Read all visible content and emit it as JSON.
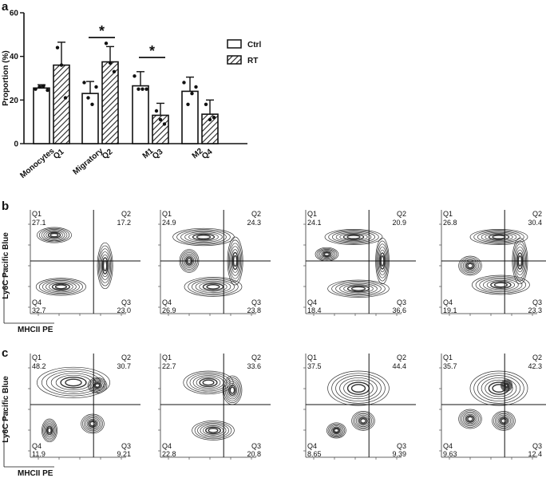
{
  "panel_letters": [
    "a",
    "b",
    "c"
  ],
  "chart_data": [
    {
      "type": "bar",
      "panel": "a",
      "ylabel": "Proportion (%)",
      "ylim": [
        0,
        60
      ],
      "yticks": [
        0,
        20,
        40,
        60
      ],
      "legend_position": "right",
      "categories": [
        {
          "name": "Monocytes",
          "sub": "Q1"
        },
        {
          "name": "Migratory",
          "sub": "Q2"
        },
        {
          "name": "M1",
          "sub": "Q3"
        },
        {
          "name": "M2",
          "sub": "Q4"
        }
      ],
      "series": [
        {
          "name": "Ctrl",
          "pattern": "open",
          "values": [
            25.5,
            23,
            26.5,
            24
          ],
          "errors": [
            1.5,
            5.5,
            6.5,
            6.5
          ],
          "points": [
            [
              25,
              26,
              26.5,
              24.5
            ],
            [
              28,
              21,
              18,
              26
            ],
            [
              31,
              25,
              25,
              25
            ],
            [
              28,
              18,
              23,
              26
            ]
          ]
        },
        {
          "name": "RT",
          "pattern": "hatched",
          "values": [
            36,
            37.5,
            13,
            13.5
          ],
          "errors": [
            10.5,
            7,
            5.5,
            6.5
          ],
          "points": [
            [
              44,
              36,
              21
            ],
            [
              46,
              37,
              33
            ],
            [
              15,
              11,
              9
            ],
            [
              18,
              11,
              12
            ]
          ]
        }
      ],
      "significance": [
        {
          "category": 1,
          "label": "*"
        },
        {
          "category": 2,
          "label": "*"
        }
      ]
    },
    {
      "type": "contour",
      "panel": "b",
      "xlabel": "MHCII PE",
      "ylabel": "Ly6C Pacific Blue",
      "plots": [
        {
          "Q1": [
            "Q1",
            "27.1"
          ],
          "Q2": [
            "Q2",
            "17.2"
          ],
          "Q3": [
            "Q3",
            "23.0"
          ],
          "Q4": [
            "Q4",
            "32.7"
          ]
        },
        {
          "Q1": [
            "Q1",
            "24.9"
          ],
          "Q2": [
            "Q2",
            "24.3"
          ],
          "Q3": [
            "Q3",
            "23.8"
          ],
          "Q4": [
            "Q4",
            "26.9"
          ]
        },
        {
          "Q1": [
            "Q1",
            "24.1"
          ],
          "Q2": [
            "Q2",
            "20.9"
          ],
          "Q3": [
            "Q3",
            "36.6"
          ],
          "Q4": [
            "Q4",
            "18.4"
          ]
        },
        {
          "Q1": [
            "Q1",
            "26.8"
          ],
          "Q2": [
            "Q2",
            "30.4"
          ],
          "Q3": [
            "Q3",
            "23.3"
          ],
          "Q4": [
            "Q4",
            "19.1"
          ]
        }
      ]
    },
    {
      "type": "contour",
      "panel": "c",
      "xlabel": "MHCII PE",
      "ylabel": "Ly6C Pacific Blue",
      "plots": [
        {
          "Q1": [
            "Q1",
            "48.2"
          ],
          "Q2": [
            "Q2",
            "30.7"
          ],
          "Q3": [
            "Q3",
            "9.21"
          ],
          "Q4": [
            "Q4",
            "11.9"
          ]
        },
        {
          "Q1": [
            "Q1",
            "22.7"
          ],
          "Q2": [
            "Q2",
            "33.6"
          ],
          "Q3": [
            "Q3",
            "20.8"
          ],
          "Q4": [
            "Q4",
            "22.8"
          ]
        },
        {
          "Q1": [
            "Q1",
            "37.5"
          ],
          "Q2": [
            "Q2",
            "44.4"
          ],
          "Q3": [
            "Q3",
            "9.39"
          ],
          "Q4": [
            "Q4",
            "8.65"
          ]
        },
        {
          "Q1": [
            "Q1",
            "35.7"
          ],
          "Q2": [
            "Q2",
            "42.3"
          ],
          "Q3": [
            "Q3",
            "12.4"
          ],
          "Q4": [
            "Q4",
            "9.63"
          ]
        }
      ]
    }
  ]
}
